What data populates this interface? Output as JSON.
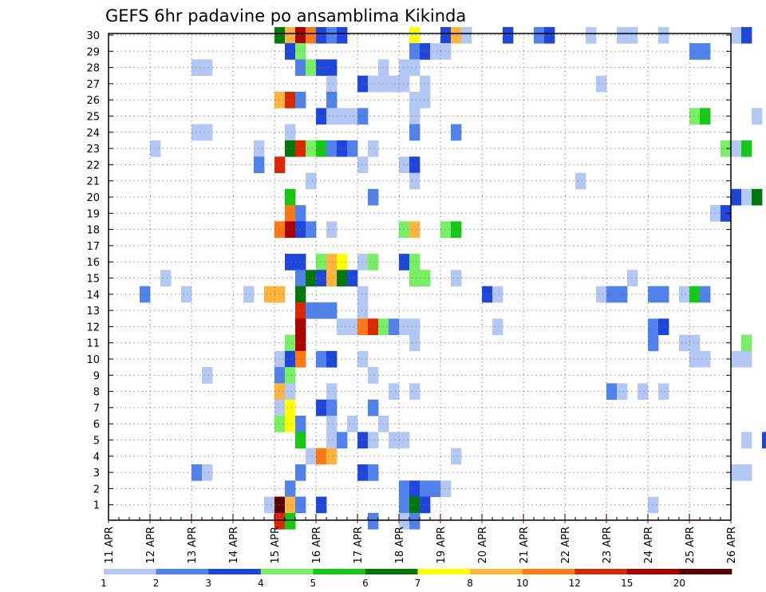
{
  "chart_data": {
    "type": "heatmap",
    "title": "GEFS 6hr padavine po ansamblima Kikinda",
    "xlabel": "",
    "ylabel": "",
    "x_ticks": [
      "11 APR",
      "12 APR",
      "13 APR",
      "14 APR",
      "15 APR",
      "16 APR",
      "17 APR",
      "18 APR",
      "19 APR",
      "20 APR",
      "21 APR",
      "22 APR",
      "23 APR",
      "24 APR",
      "25 APR",
      "26 APR"
    ],
    "y_ticks": [
      1,
      2,
      3,
      4,
      5,
      6,
      7,
      8,
      9,
      10,
      11,
      12,
      13,
      14,
      15,
      16,
      17,
      18,
      19,
      20,
      21,
      22,
      23,
      24,
      25,
      26,
      27,
      28,
      29,
      30
    ],
    "colorbar_labels": [
      "1",
      "2",
      "3",
      "4",
      "5",
      "6",
      "7",
      "8",
      "10",
      "12",
      "15",
      "20"
    ],
    "colors": [
      "#b4c8f5",
      "#5082ee",
      "#1e46dc",
      "#78f064",
      "#14c814",
      "#00780a",
      "#ffff00",
      "#ffb43c",
      "#ff7814",
      "#dc2800",
      "#aa0000",
      "#5a0000"
    ],
    "grid": true,
    "rows": [
      {
        "member": 30,
        "cells": [
          [
            0,
            "F"
          ],
          [
            1,
            "H"
          ],
          [
            2,
            "K"
          ],
          [
            3,
            "I"
          ],
          [
            4,
            "C"
          ],
          [
            5,
            "B"
          ],
          [
            6,
            "C"
          ],
          [
            13,
            "G"
          ],
          [
            16,
            "C"
          ],
          [
            17,
            "H"
          ],
          [
            18,
            "A"
          ],
          [
            22,
            "C"
          ],
          [
            25,
            "B"
          ],
          [
            26,
            "C"
          ],
          [
            30,
            "A"
          ],
          [
            33,
            "A"
          ],
          [
            34,
            "A"
          ],
          [
            37,
            "A"
          ],
          [
            44,
            "A"
          ],
          [
            45,
            "C"
          ]
        ]
      },
      {
        "member": 29,
        "cells": [
          [
            1,
            "C"
          ],
          [
            2,
            "D"
          ],
          [
            13,
            "B"
          ],
          [
            14,
            "C"
          ],
          [
            15,
            "A"
          ],
          [
            16,
            "A"
          ],
          [
            40,
            "B"
          ],
          [
            41,
            "B"
          ]
        ]
      },
      {
        "member": 28,
        "cells": [
          [
            -8,
            "A"
          ],
          [
            -7,
            "A"
          ],
          [
            2,
            "B"
          ],
          [
            3,
            "D"
          ],
          [
            4,
            "C"
          ],
          [
            5,
            "C"
          ],
          [
            10,
            "A"
          ],
          [
            12,
            "A"
          ],
          [
            13,
            "A"
          ]
        ]
      },
      {
        "member": 27,
        "cells": [
          [
            5,
            "A"
          ],
          [
            8,
            "C"
          ],
          [
            9,
            "A"
          ],
          [
            10,
            "A"
          ],
          [
            11,
            "A"
          ],
          [
            12,
            "A"
          ],
          [
            14,
            "A"
          ],
          [
            31,
            "A"
          ]
        ]
      },
      {
        "member": 26,
        "cells": [
          [
            0,
            "H"
          ],
          [
            1,
            "J"
          ],
          [
            2,
            "B"
          ],
          [
            5,
            "B"
          ],
          [
            13,
            "A"
          ],
          [
            14,
            "A"
          ]
        ]
      },
      {
        "member": 25,
        "cells": [
          [
            4,
            "C"
          ],
          [
            5,
            "A"
          ],
          [
            6,
            "A"
          ],
          [
            7,
            "A"
          ],
          [
            8,
            "B"
          ],
          [
            13,
            "A"
          ],
          [
            40,
            "D"
          ],
          [
            41,
            "E"
          ],
          [
            46,
            "A"
          ]
        ]
      },
      {
        "member": 24,
        "cells": [
          [
            -8,
            "A"
          ],
          [
            -7,
            "A"
          ],
          [
            1,
            "A"
          ],
          [
            13,
            "B"
          ],
          [
            17,
            "B"
          ]
        ]
      },
      {
        "member": 23,
        "cells": [
          [
            -12,
            "A"
          ],
          [
            -2,
            "A"
          ],
          [
            1,
            "F"
          ],
          [
            2,
            "J"
          ],
          [
            3,
            "D"
          ],
          [
            4,
            "E"
          ],
          [
            5,
            "B"
          ],
          [
            6,
            "C"
          ],
          [
            7,
            "B"
          ],
          [
            9,
            "A"
          ],
          [
            43,
            "D"
          ],
          [
            44,
            "A"
          ],
          [
            45,
            "E"
          ]
        ]
      },
      {
        "member": 22,
        "cells": [
          [
            -2,
            "B"
          ],
          [
            0,
            "J"
          ],
          [
            8,
            "A"
          ],
          [
            12,
            "A"
          ],
          [
            13,
            "C"
          ]
        ]
      },
      {
        "member": 21,
        "cells": [
          [
            3,
            "A"
          ],
          [
            13,
            "A"
          ],
          [
            29,
            "A"
          ]
        ]
      },
      {
        "member": 20,
        "cells": [
          [
            1,
            "E"
          ],
          [
            9,
            "B"
          ],
          [
            44,
            "C"
          ],
          [
            45,
            "A"
          ],
          [
            46,
            "F"
          ]
        ]
      },
      {
        "member": 19,
        "cells": [
          [
            1,
            "I"
          ],
          [
            2,
            "B"
          ],
          [
            42,
            "A"
          ],
          [
            43,
            "C"
          ]
        ]
      },
      {
        "member": 18,
        "cells": [
          [
            0,
            "I"
          ],
          [
            1,
            "K"
          ],
          [
            2,
            "C"
          ],
          [
            3,
            "B"
          ],
          [
            5,
            "A"
          ],
          [
            12,
            "D"
          ],
          [
            13,
            "H"
          ],
          [
            16,
            "D"
          ],
          [
            17,
            "E"
          ]
        ]
      },
      {
        "member": 16,
        "cells": [
          [
            1,
            "C"
          ],
          [
            2,
            "C"
          ],
          [
            4,
            "D"
          ],
          [
            5,
            "H"
          ],
          [
            6,
            "G"
          ],
          [
            8,
            "A"
          ],
          [
            9,
            "D"
          ],
          [
            12,
            "C"
          ],
          [
            13,
            "D"
          ]
        ]
      },
      {
        "member": 15,
        "cells": [
          [
            -11,
            "A"
          ],
          [
            2,
            "B"
          ],
          [
            3,
            "F"
          ],
          [
            4,
            "C"
          ],
          [
            5,
            "H"
          ],
          [
            6,
            "F"
          ],
          [
            7,
            "C"
          ],
          [
            13,
            "D"
          ],
          [
            14,
            "D"
          ],
          [
            17,
            "A"
          ],
          [
            34,
            "A"
          ]
        ]
      },
      {
        "member": 14,
        "cells": [
          [
            -13,
            "B"
          ],
          [
            -9,
            "A"
          ],
          [
            -3,
            "A"
          ],
          [
            -1,
            "H"
          ],
          [
            0,
            "H"
          ],
          [
            2,
            "F"
          ],
          [
            8,
            "A"
          ],
          [
            20,
            "C"
          ],
          [
            21,
            "A"
          ],
          [
            31,
            "A"
          ],
          [
            32,
            "B"
          ],
          [
            33,
            "B"
          ],
          [
            36,
            "B"
          ],
          [
            37,
            "B"
          ],
          [
            39,
            "A"
          ],
          [
            40,
            "E"
          ],
          [
            41,
            "B"
          ]
        ]
      },
      {
        "member": 13,
        "cells": [
          [
            2,
            "J"
          ],
          [
            3,
            "B"
          ],
          [
            4,
            "B"
          ],
          [
            5,
            "B"
          ],
          [
            8,
            "A"
          ]
        ]
      },
      {
        "member": 12,
        "cells": [
          [
            2,
            "K"
          ],
          [
            6,
            "A"
          ],
          [
            7,
            "A"
          ],
          [
            8,
            "I"
          ],
          [
            9,
            "J"
          ],
          [
            10,
            "D"
          ],
          [
            11,
            "B"
          ],
          [
            12,
            "A"
          ],
          [
            13,
            "A"
          ],
          [
            21,
            "A"
          ],
          [
            36,
            "B"
          ],
          [
            37,
            "C"
          ]
        ]
      },
      {
        "member": 11,
        "cells": [
          [
            1,
            "D"
          ],
          [
            2,
            "K"
          ],
          [
            13,
            "A"
          ],
          [
            36,
            "B"
          ],
          [
            39,
            "A"
          ],
          [
            40,
            "A"
          ],
          [
            45,
            "D"
          ]
        ]
      },
      {
        "member": 10,
        "cells": [
          [
            0,
            "A"
          ],
          [
            1,
            "C"
          ],
          [
            2,
            "I"
          ],
          [
            4,
            "B"
          ],
          [
            5,
            "C"
          ],
          [
            8,
            "A"
          ],
          [
            40,
            "A"
          ],
          [
            41,
            "A"
          ],
          [
            44,
            "A"
          ],
          [
            45,
            "A"
          ]
        ]
      },
      {
        "member": 9,
        "cells": [
          [
            -7,
            "A"
          ],
          [
            0,
            "B"
          ],
          [
            1,
            "D"
          ],
          [
            9,
            "A"
          ]
        ]
      },
      {
        "member": 8,
        "cells": [
          [
            0,
            "H"
          ],
          [
            1,
            "A"
          ],
          [
            5,
            "A"
          ],
          [
            11,
            "A"
          ],
          [
            13,
            "A"
          ],
          [
            32,
            "B"
          ],
          [
            33,
            "A"
          ],
          [
            35,
            "A"
          ],
          [
            37,
            "A"
          ]
        ]
      },
      {
        "member": 7,
        "cells": [
          [
            0,
            "A"
          ],
          [
            1,
            "G"
          ],
          [
            4,
            "C"
          ],
          [
            5,
            "B"
          ],
          [
            9,
            "B"
          ]
        ]
      },
      {
        "member": 6,
        "cells": [
          [
            0,
            "D"
          ],
          [
            1,
            "G"
          ],
          [
            2,
            "B"
          ],
          [
            5,
            "A"
          ],
          [
            7,
            "A"
          ],
          [
            10,
            "A"
          ]
        ]
      },
      {
        "member": 5,
        "cells": [
          [
            2,
            "E"
          ],
          [
            5,
            "A"
          ],
          [
            6,
            "B"
          ],
          [
            8,
            "C"
          ],
          [
            9,
            "A"
          ],
          [
            11,
            "A"
          ],
          [
            12,
            "A"
          ],
          [
            45,
            "A"
          ],
          [
            47,
            "C"
          ]
        ]
      },
      {
        "member": 4,
        "cells": [
          [
            3,
            "A"
          ],
          [
            4,
            "I"
          ],
          [
            5,
            "H"
          ],
          [
            17,
            "A"
          ]
        ]
      },
      {
        "member": 3,
        "cells": [
          [
            -8,
            "B"
          ],
          [
            -7,
            "A"
          ],
          [
            2,
            "B"
          ],
          [
            8,
            "C"
          ],
          [
            9,
            "B"
          ],
          [
            44,
            "A"
          ],
          [
            45,
            "A"
          ]
        ]
      },
      {
        "member": 2,
        "cells": [
          [
            1,
            "B"
          ],
          [
            12,
            "B"
          ],
          [
            13,
            "C"
          ],
          [
            14,
            "B"
          ],
          [
            15,
            "B"
          ],
          [
            16,
            "A"
          ]
        ]
      },
      {
        "member": 1,
        "cells": [
          [
            -1,
            "A"
          ],
          [
            0,
            "L"
          ],
          [
            1,
            "H"
          ],
          [
            2,
            "B"
          ],
          [
            4,
            "C"
          ],
          [
            12,
            "B"
          ],
          [
            13,
            "F"
          ],
          [
            14,
            "C"
          ],
          [
            36,
            "A"
          ]
        ]
      },
      {
        "member": 0,
        "cells": [
          [
            0,
            "J"
          ],
          [
            1,
            "E"
          ],
          [
            9,
            "B"
          ],
          [
            12,
            "A"
          ],
          [
            13,
            "B"
          ]
        ]
      }
    ],
    "cell_key": "first number = 6h step from 15 APR 00Z; letter = colour class A..L in order of colors"
  }
}
